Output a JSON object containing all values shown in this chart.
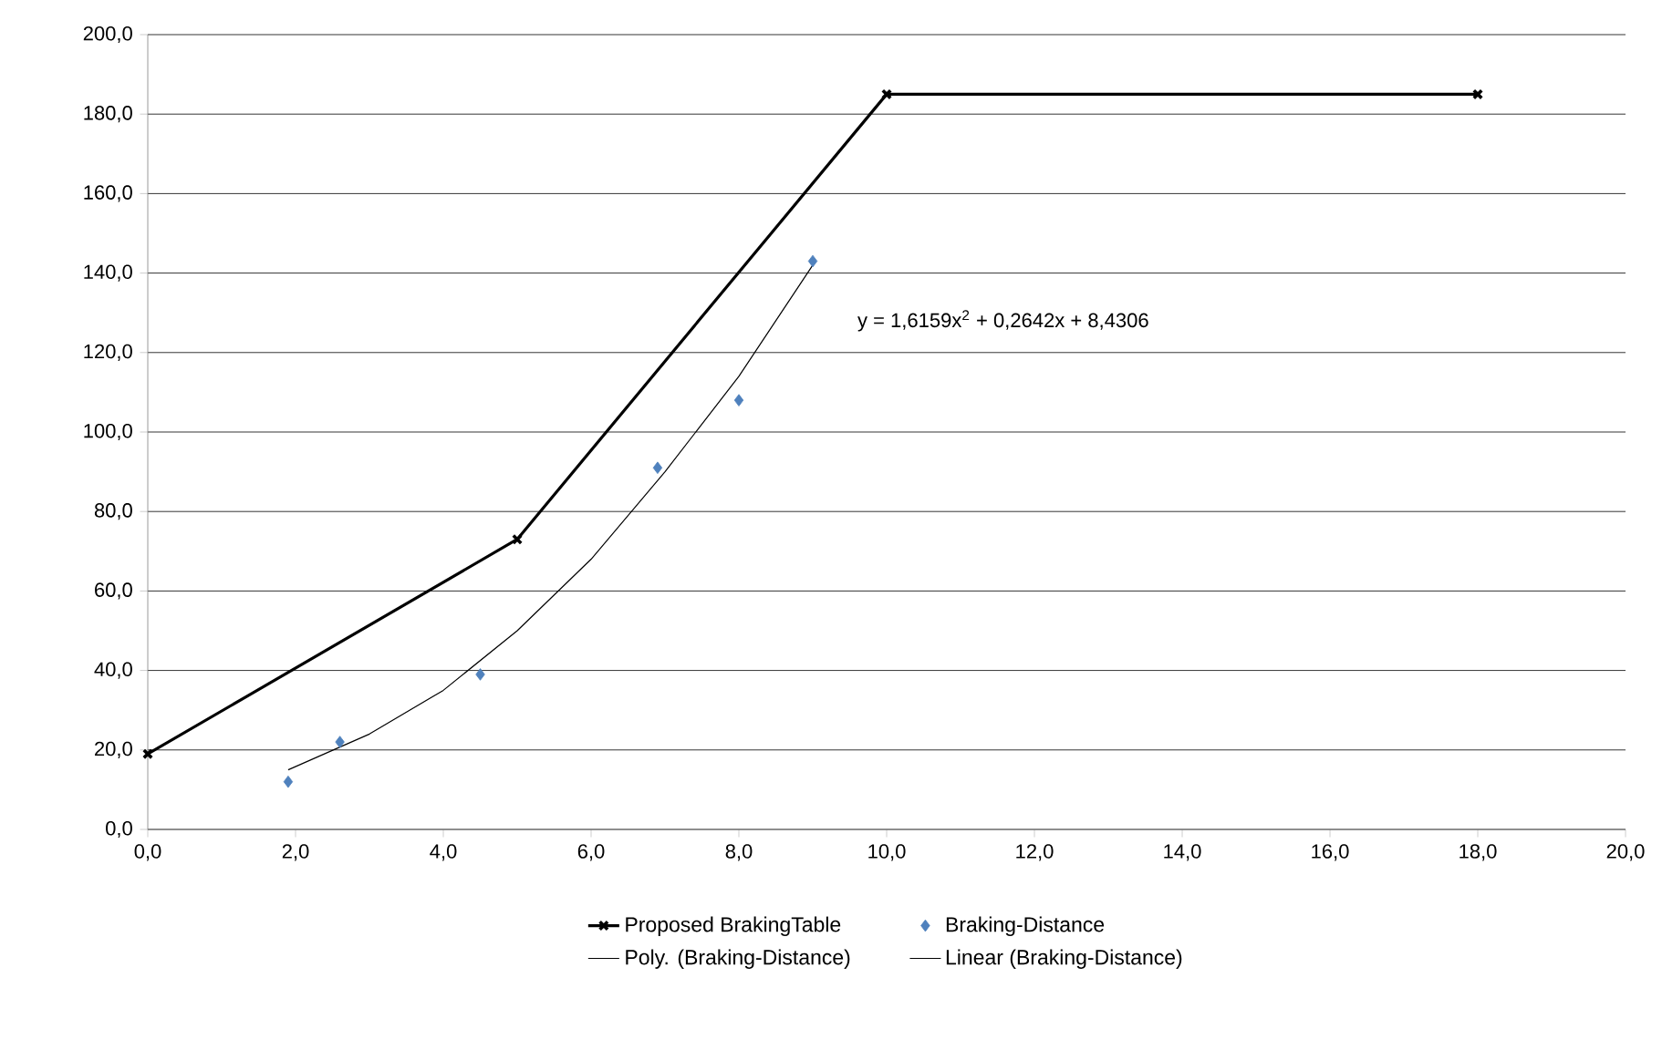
{
  "chart_data": {
    "type": "scatter",
    "series": [
      {
        "name": "Proposed BrakingTable",
        "type": "line",
        "color": "#000000",
        "marker": "cross",
        "line_style": "solid",
        "x": [
          0,
          5,
          10,
          18
        ],
        "values": [
          19,
          73,
          185,
          185
        ]
      },
      {
        "name": "Braking-Distance",
        "color": "#4f81bd",
        "marker": "diamond",
        "x": [
          1.9,
          2.6,
          4.5,
          6.9,
          8.0,
          9.0
        ],
        "values": [
          12,
          22,
          39,
          91,
          108,
          143
        ]
      },
      {
        "name": "Poly. (Braking-Distance)",
        "type": "line",
        "color": "#000000",
        "marker": "none",
        "line_style": "solid",
        "x": [
          1.9,
          3,
          4,
          5,
          6,
          7,
          8,
          9
        ],
        "values": [
          15,
          24,
          35,
          50,
          68,
          90,
          114,
          142
        ]
      },
      {
        "name": "Linear (Braking-Distance)",
        "type": "line",
        "color": "#000000",
        "marker": "none",
        "line_style": "solid"
      }
    ],
    "annotations": [
      "y = 1,6159x$^{2}$ + 0,2642x + 8,4306"
    ],
    "xlim": [
      0,
      20
    ],
    "ylim": [
      0,
      200
    ],
    "xticks": [
      {
        "value": 0,
        "label": "0,0"
      },
      {
        "value": 2,
        "label": "2,0"
      },
      {
        "value": 4,
        "label": "4,0"
      },
      {
        "value": 6,
        "label": "6,0"
      },
      {
        "value": 8,
        "label": "8,0"
      },
      {
        "value": 10,
        "label": "10,0"
      },
      {
        "value": 12,
        "label": "12,0"
      },
      {
        "value": 14,
        "label": "14,0"
      },
      {
        "value": 16,
        "label": "16,0"
      },
      {
        "value": 18,
        "label": "18,0"
      },
      {
        "value": 20,
        "label": "20,0"
      }
    ],
    "yticks": [
      {
        "value": 0,
        "label": "0,0"
      },
      {
        "value": 20,
        "label": "20,0"
      },
      {
        "value": 40,
        "label": "40,0"
      },
      {
        "value": 60,
        "label": "60,0"
      },
      {
        "value": 80,
        "label": "80,0"
      },
      {
        "value": 100,
        "label": "100,0"
      },
      {
        "value": 120,
        "label": "120,0"
      },
      {
        "value": 140,
        "label": "140,0"
      },
      {
        "value": 160,
        "label": "160,0"
      },
      {
        "value": 180,
        "label": "180,0"
      },
      {
        "value": 200,
        "label": "200,0"
      }
    ],
    "grid": "y",
    "legend": "bottom"
  }
}
